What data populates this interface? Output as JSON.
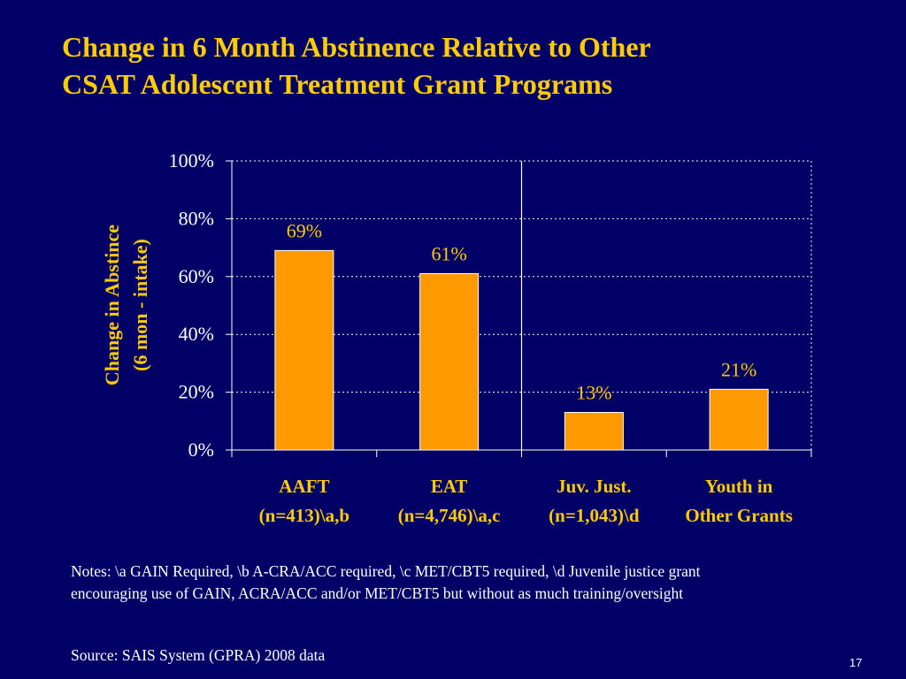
{
  "slide": {
    "title_line1": "Change in 6 Month Abstinence Relative to Other",
    "title_line2": "CSAT Adolescent Treatment Grant Programs",
    "notes": "Notes:  \\a GAIN Required, \\b A-CRA/ACC required, \\c  MET/CBT5 required, \\d Juvenile justice grant encouraging use of GAIN, ACRA/ACC and/or MET/CBT5 but without as much training/oversight",
    "source": "Source:  SAIS System (GPRA) 2008 data",
    "page_number": "17"
  },
  "colors": {
    "background": "#000066",
    "title": "#ffcc00",
    "bar": "#ff9900",
    "axis_text": "#ffcc00",
    "text": "#ffffff"
  },
  "chart_data": {
    "type": "bar",
    "categories": [
      [
        "AAFT",
        "(n=413)\\a,b"
      ],
      [
        "EAT",
        "(n=4,746)\\a,c"
      ],
      [
        "Juv. Just.",
        "(n=1,043)\\d"
      ],
      [
        "Youth in",
        "Other Grants"
      ]
    ],
    "values": [
      69,
      61,
      13,
      21
    ],
    "data_labels": [
      "69%",
      "61%",
      "13%",
      "21%"
    ],
    "ylabel_line1": "Change in Abstince",
    "ylabel_line2": "(6 mon - intake)",
    "ylim": [
      0,
      100
    ],
    "yticks": [
      0,
      20,
      40,
      60,
      80,
      100
    ],
    "ytick_labels": [
      "0%",
      "20%",
      "40%",
      "60%",
      "80%",
      "100%"
    ],
    "grid": "dotted horizontal",
    "divider_after_category": 2
  }
}
